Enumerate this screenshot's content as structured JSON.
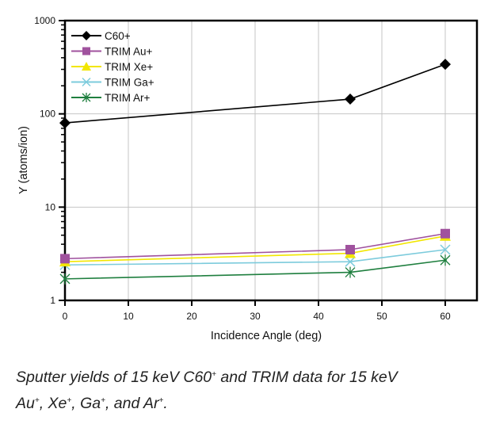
{
  "chart_data": {
    "type": "line",
    "title": "",
    "xlabel": "Incidence Angle (deg)",
    "ylabel": "Y (atoms/ion)",
    "xlim": [
      0,
      65
    ],
    "ylim": [
      1,
      1000
    ],
    "yscale": "log",
    "grid": true,
    "legend": "top-left",
    "x_ticks": [
      0,
      10,
      20,
      30,
      40,
      50,
      60
    ],
    "y_ticks": [
      1,
      10,
      100,
      1000
    ],
    "x_tick_labels": [
      "0",
      "10",
      "20",
      "30",
      "40",
      "50",
      "60"
    ],
    "y_tick_labels": [
      "1",
      "10",
      "100",
      "1000"
    ],
    "x": [
      0,
      45,
      60
    ],
    "series": [
      {
        "name": "C60+",
        "values": [
          80,
          144,
          340
        ],
        "color": "#000000",
        "marker": "diamond"
      },
      {
        "name": "TRIM Au+",
        "values": [
          2.8,
          3.5,
          5.2
        ],
        "color": "#a0529e",
        "marker": "square"
      },
      {
        "name": "TRIM Xe+",
        "values": [
          2.6,
          3.2,
          4.9
        ],
        "color": "#f2e600",
        "marker": "triangle"
      },
      {
        "name": "TRIM Ga+",
        "values": [
          2.4,
          2.6,
          3.5
        ],
        "color": "#7ccbdc",
        "marker": "x"
      },
      {
        "name": "TRIM Ar+",
        "values": [
          1.7,
          2.0,
          2.7
        ],
        "color": "#1f7f3f",
        "marker": "asterisk"
      }
    ]
  },
  "caption": {
    "line1_a": "Sputter yields of 15 keV C60",
    "sup1": "+",
    "line1_b": " and TRIM data for 15 keV",
    "au": "Au",
    "xe": "Xe",
    "ga": "Ga",
    "ar": "Ar",
    "plus": "+",
    "sep": ", ",
    "and": ", and ",
    "end": "."
  }
}
